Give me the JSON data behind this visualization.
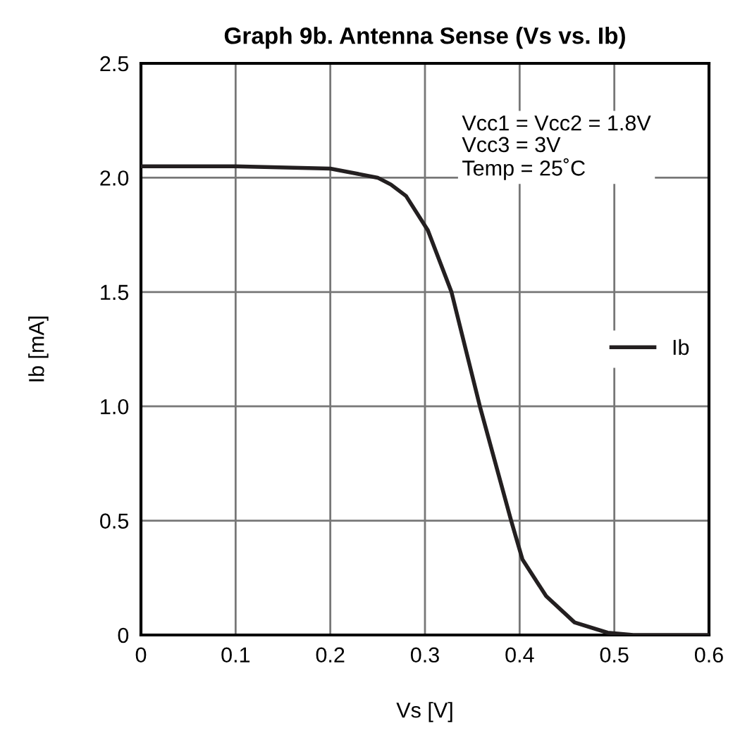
{
  "chart_data": {
    "type": "line",
    "title": "Graph 9b. Antenna Sense (Vs vs. Ib)",
    "xlabel": "Vs [V]",
    "ylabel": "Ib [mA]",
    "xlim": [
      0,
      0.6
    ],
    "ylim": [
      0,
      2.5
    ],
    "xticks": [
      0,
      0.1,
      0.2,
      0.3,
      0.4,
      0.5,
      0.6
    ],
    "yticks": [
      0,
      0.5,
      {
        "value": 1,
        "label": "1.0"
      },
      1.5,
      {
        "value": 2,
        "label": "2.0"
      },
      2.5
    ],
    "grid": true,
    "legend": "center right",
    "marker": "none",
    "line_style": "solid",
    "annotations": [
      "Vcc1 = Vcc2 = 1.8V\nVcc3 = 3V\nTemp = 25˚C"
    ],
    "series": [
      {
        "name": "Ib",
        "color": "#231f20",
        "x": [
          0,
          0.1,
          0.2,
          0.25,
          0.264,
          0.28,
          0.303,
          0.328,
          0.358,
          0.391,
          0.403,
          0.428,
          0.458,
          0.493,
          0.52,
          0.6
        ],
        "values": [
          2.05,
          2.05,
          2.04,
          2.0,
          1.97,
          1.92,
          1.77,
          1.5,
          1.0,
          0.5,
          0.33,
          0.17,
          0.055,
          0.01,
          0.0,
          0.0
        ]
      }
    ]
  }
}
